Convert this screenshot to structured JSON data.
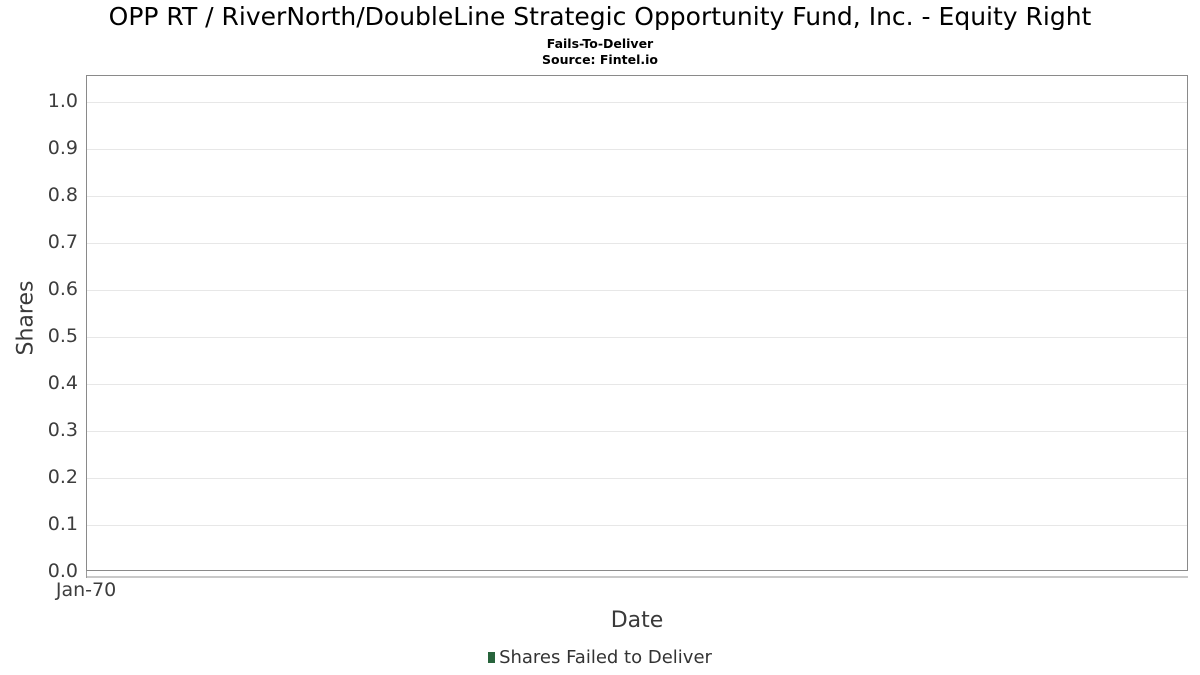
{
  "chart_data": {
    "type": "bar",
    "title": "OPP RT / RiverNorth/DoubleLine Strategic Opportunity Fund, Inc. - Equity Right",
    "subtitle": "Fails-To-Deliver",
    "source": "Source: Fintel.io",
    "xlabel": "Date",
    "ylabel": "Shares",
    "x_ticks": [
      "Jan-70"
    ],
    "y_ticks": [
      "0.0",
      "0.1",
      "0.2",
      "0.3",
      "0.4",
      "0.5",
      "0.6",
      "0.7",
      "0.8",
      "0.9",
      "1.0"
    ],
    "ylim": [
      0,
      1.06
    ],
    "grid": "horizontal",
    "legend": {
      "position": "bottom",
      "entries": [
        {
          "label": "Shares Failed to Deliver",
          "color": "#28643c"
        }
      ]
    },
    "series": [
      {
        "name": "Shares Failed to Deliver",
        "x": [],
        "values": []
      }
    ]
  },
  "colors": {
    "plot_border": "#8a8a8a",
    "gridline": "#e7e7e7",
    "axis_line": "#c9c9c9",
    "tick_mark": "#999999",
    "tick_text": "#3d3d3d",
    "axis_title_text": "#3a3a3a",
    "title_text": "#000000"
  }
}
